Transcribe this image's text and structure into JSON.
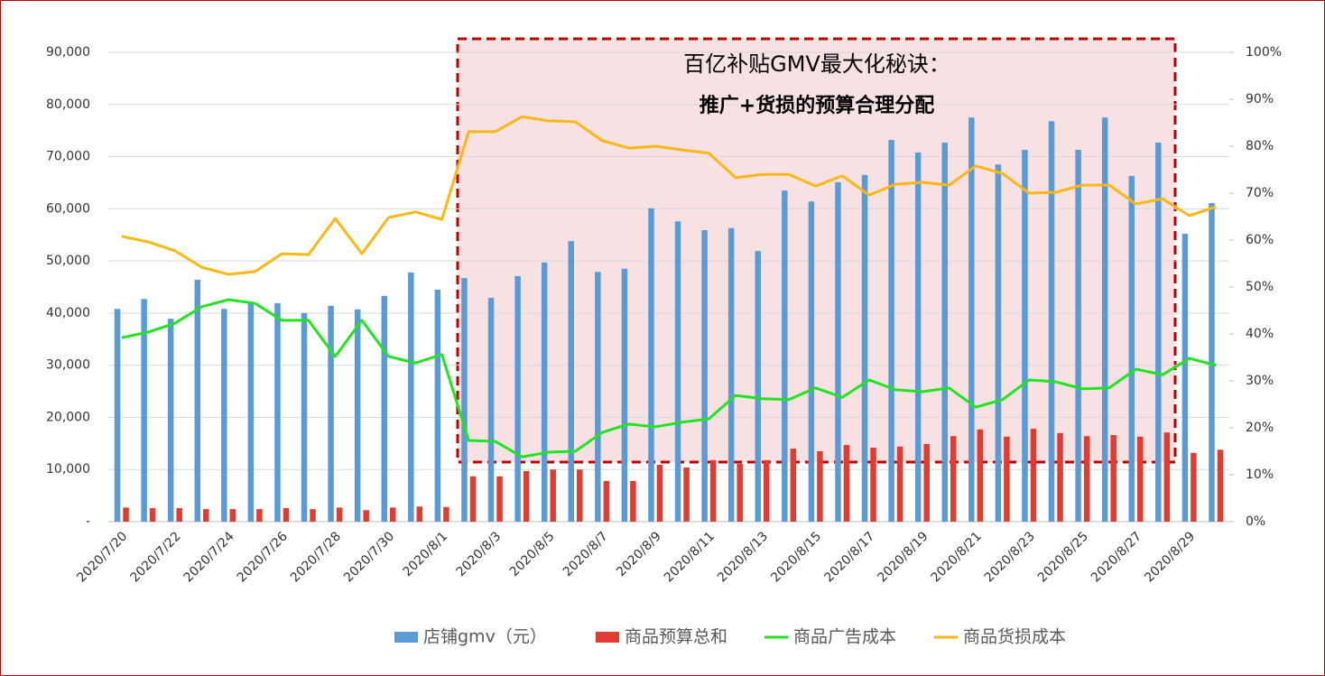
{
  "chart_data": {
    "type": "bar-line",
    "annotation": [
      "百亿补贴GMV最大化秘诀：",
      "推广+货损的预算合理分配"
    ],
    "categories": [
      "2020/7/20",
      null,
      "2020/7/22",
      null,
      "2020/7/24",
      null,
      "2020/7/26",
      null,
      "2020/7/28",
      null,
      "2020/7/30",
      null,
      "2020/8/1",
      null,
      "2020/8/3",
      null,
      "2020/8/5",
      null,
      "2020/8/7",
      null,
      "2020/8/9",
      null,
      "2020/8/11",
      null,
      "2020/8/13",
      null,
      "2020/8/15",
      null,
      "2020/8/17",
      null,
      "2020/8/19",
      null,
      "2020/8/21",
      null,
      "2020/8/23",
      null,
      "2020/8/25",
      null,
      "2020/8/27",
      null,
      "2020/8/29",
      null
    ],
    "series": [
      {
        "name": "店铺gmv（元）",
        "color": "#5b9bd5",
        "kind": "bar",
        "values": [
          40800,
          42700,
          38900,
          46400,
          40800,
          41900,
          41900,
          40000,
          41400,
          40700,
          43300,
          47800,
          44500,
          46700,
          42900,
          47100,
          49700,
          53800,
          47900,
          48500,
          60100,
          57600,
          55900,
          56300,
          51900,
          63500,
          61400,
          65100,
          66500,
          73200,
          70800,
          72700,
          77500,
          68500,
          71300,
          76800,
          71300,
          77500,
          66300,
          72700,
          55200,
          61100
        ]
      },
      {
        "name": "商品预算总和",
        "color": "#e03c31",
        "kind": "bar",
        "values": [
          2700,
          2600,
          2600,
          2400,
          2400,
          2400,
          2600,
          2400,
          2700,
          2200,
          2700,
          2900,
          2800,
          8700,
          8700,
          9700,
          10000,
          10000,
          7800,
          7800,
          10900,
          10400,
          11800,
          11100,
          11800,
          14000,
          13500,
          14700,
          14200,
          14400,
          14900,
          16400,
          17700,
          16300,
          17800,
          17000,
          16400,
          16600,
          16300,
          17100,
          13200,
          13800
        ]
      },
      {
        "name": "商品广告成本",
        "color": "#22e322",
        "kind": "line",
        "axis": "y2",
        "values": [
          39.2,
          40.4,
          42.3,
          45.8,
          47.3,
          46.5,
          42.9,
          42.9,
          35.2,
          42.9,
          35.2,
          33.8,
          35.6,
          17.3,
          17.1,
          13.8,
          14.8,
          15.0,
          19.0,
          20.8,
          20.2,
          21.2,
          21.9,
          26.9,
          26.2,
          26.0,
          28.5,
          26.5,
          30.2,
          28.1,
          27.7,
          28.5,
          24.4,
          26.0,
          30.2,
          29.8,
          28.3,
          28.5,
          32.5,
          31.3,
          34.8,
          33.3
        ]
      },
      {
        "name": "商品货损成本",
        "color": "#fbb814",
        "kind": "line",
        "axis": "y2",
        "values": [
          60.8,
          59.6,
          57.7,
          54.2,
          52.7,
          53.3,
          57.1,
          56.9,
          64.6,
          57.1,
          64.8,
          66.0,
          64.4,
          83.1,
          83.1,
          86.3,
          85.4,
          85.2,
          81.2,
          79.6,
          80.0,
          79.2,
          78.5,
          73.3,
          74.0,
          74.0,
          71.5,
          73.7,
          69.6,
          71.9,
          72.3,
          71.7,
          75.8,
          74.2,
          70.0,
          70.2,
          71.7,
          71.7,
          67.7,
          68.8,
          65.2,
          67.1
        ]
      }
    ],
    "ylim": [
      0,
      90000
    ],
    "yticks": [
      {
        "value": 0,
        "label": "-"
      },
      {
        "value": 10000,
        "label": "10,000"
      },
      {
        "value": 20000,
        "label": "20,000"
      },
      {
        "value": 30000,
        "label": "30,000"
      },
      {
        "value": 40000,
        "label": "40,000"
      },
      {
        "value": 50000,
        "label": "50,000"
      },
      {
        "value": 60000,
        "label": "60,000"
      },
      {
        "value": 70000,
        "label": "70,000"
      },
      {
        "value": 80000,
        "label": "80,000"
      },
      {
        "value": 90000,
        "label": "90,000"
      }
    ],
    "y2lim": [
      0,
      100
    ],
    "y2ticks": [
      {
        "value": 0,
        "label": "0%"
      },
      {
        "value": 10,
        "label": "10%"
      },
      {
        "value": 20,
        "label": "20%"
      },
      {
        "value": 30,
        "label": "30%"
      },
      {
        "value": 40,
        "label": "40%"
      },
      {
        "value": 50,
        "label": "50%"
      },
      {
        "value": 60,
        "label": "60%"
      },
      {
        "value": 70,
        "label": "70%"
      },
      {
        "value": 80,
        "label": "80%"
      },
      {
        "value": 90,
        "label": "90%"
      },
      {
        "value": 100,
        "label": "100%"
      }
    ],
    "grid": true,
    "legend": "bottom"
  }
}
